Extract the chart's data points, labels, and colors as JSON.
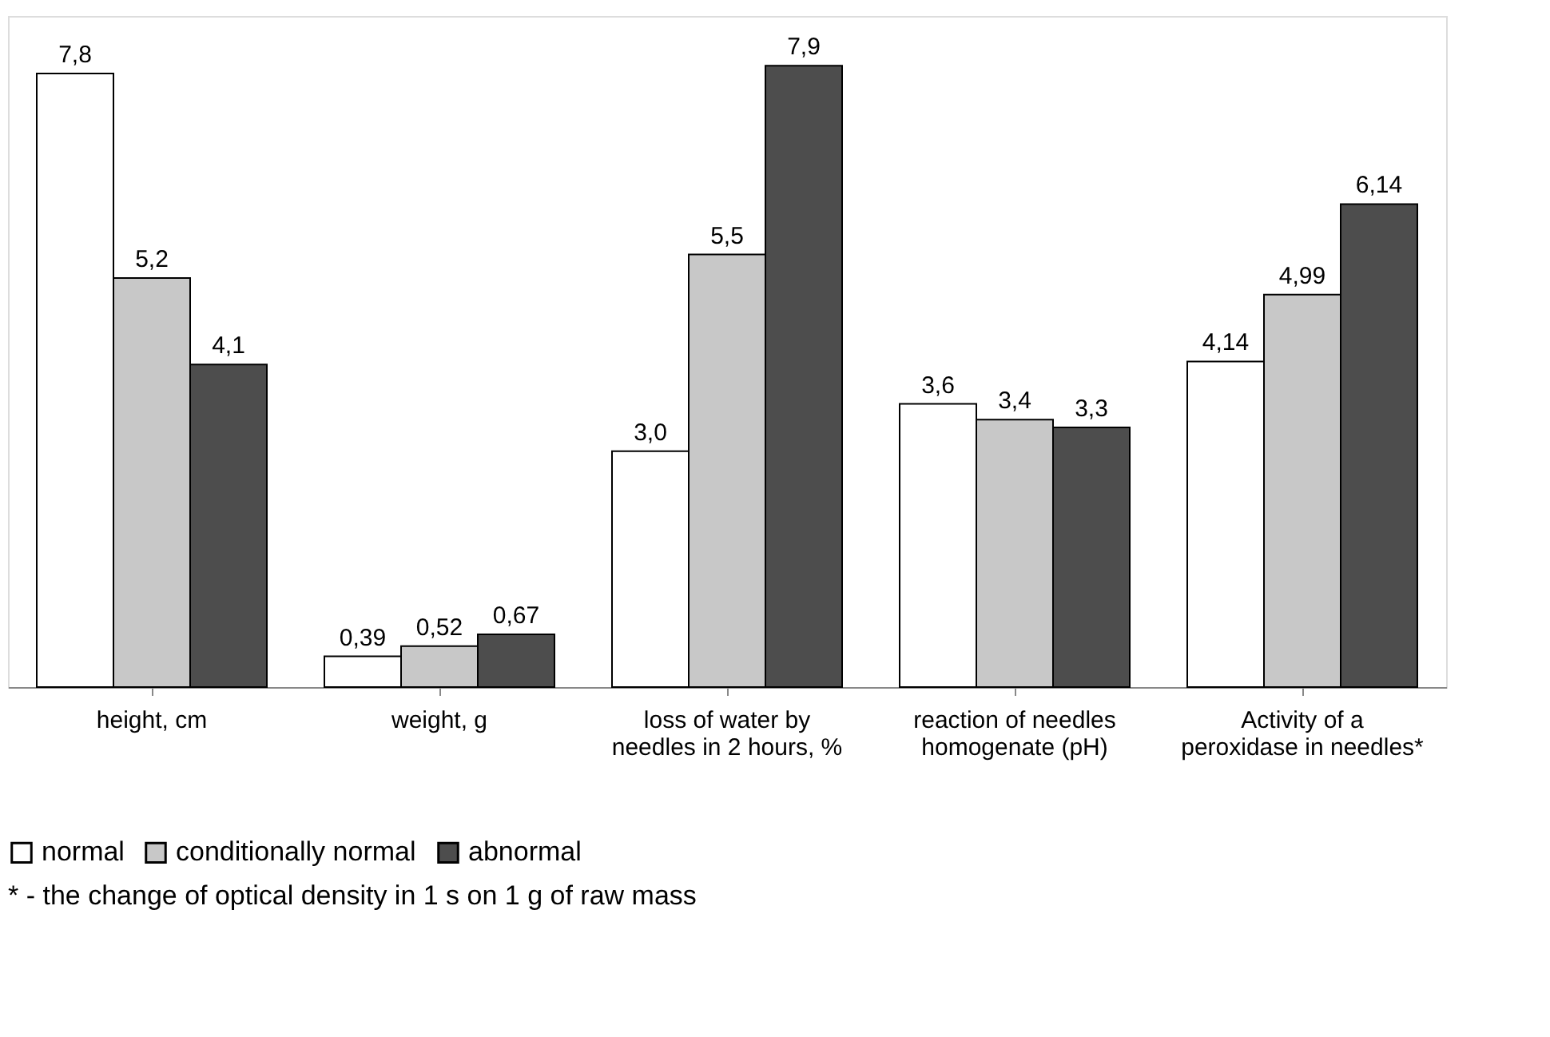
{
  "chart_data": {
    "type": "bar",
    "categories": [
      "height, cm",
      "weight, g",
      "loss of water by needles in 2 hours, %",
      "reaction of needles homogenate (pH)",
      "Activity of a peroxidase in needles*"
    ],
    "series": [
      {
        "name": "normal",
        "color": "#ffffff",
        "values": [
          7.8,
          0.39,
          3.0,
          3.6,
          4.14
        ],
        "value_labels": [
          "7,8",
          "0,39",
          "3,0",
          "3,6",
          "4,14"
        ]
      },
      {
        "name": "conditionally normal",
        "color": "#c8c8c8",
        "values": [
          5.2,
          0.52,
          5.5,
          3.4,
          4.99
        ],
        "value_labels": [
          "5,2",
          "0,52",
          "5,5",
          "3,4",
          "4,99"
        ]
      },
      {
        "name": "abnormal",
        "color": "#4d4d4d",
        "values": [
          4.1,
          0.67,
          7.9,
          3.3,
          6.14
        ],
        "value_labels": [
          "4,1",
          "0,67",
          "7,9",
          "3,3",
          "6,14"
        ]
      }
    ],
    "annotations": [
      "* - the change of optical density in 1 s on 1 g of raw mass"
    ],
    "legend": "bottom",
    "grid": false
  }
}
